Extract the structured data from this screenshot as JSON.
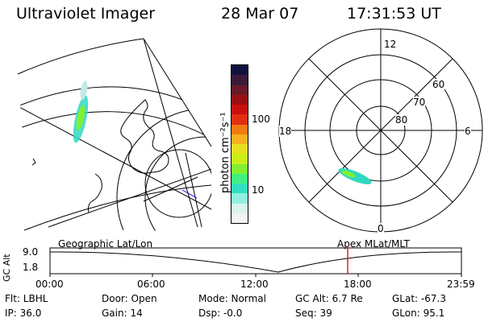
{
  "header": {
    "title": "Ultraviolet Imager",
    "date": "28 Mar 07",
    "time": "17:31:53 UT"
  },
  "colorbar": {
    "unit_label": "photon cm⁻²s⁻¹",
    "ticks": [
      "100",
      "10"
    ],
    "colors": [
      "#101040",
      "#3a1a3a",
      "#6a1a2a",
      "#9a0f12",
      "#c81010",
      "#e03010",
      "#f07a10",
      "#f4b020",
      "#e6e020",
      "#c8f018",
      "#80f030",
      "#40f080",
      "#30e0c0",
      "#90f0e0",
      "#d8f4f0",
      "#f4f4f4"
    ]
  },
  "polar_plot": {
    "labels": {
      "top": "12",
      "right": "6",
      "bottom": "0",
      "left": "18"
    },
    "lat_labels": [
      "60",
      "70",
      "80"
    ],
    "aurora_color": "#30d8c0"
  },
  "map_plot": {
    "aurora_colors": [
      "#30d8c0",
      "#80f030"
    ]
  },
  "timeline": {
    "left_title": "Geographic Lat/Lon",
    "right_title": "Apex MLat/MLT",
    "ylabel": "GC Alt",
    "yticks": [
      "9.0",
      "1.8"
    ],
    "xticks": [
      "00:00",
      "06:00",
      "12:00",
      "18:00",
      "23:59"
    ],
    "marker_color": "#e00000"
  },
  "info": {
    "filter": "Flt: LBHL",
    "ip": "IP: 36.0",
    "door": "Door: Open",
    "gain": "Gain: 14",
    "mode": "Mode: Normal",
    "dsp": "Dsp:   -0.0",
    "gc_alt": "GC Alt: 6.7 Re",
    "seq": "Seq: 39",
    "glat": "GLat: -67.3",
    "glon": "GLon:  95.1"
  }
}
